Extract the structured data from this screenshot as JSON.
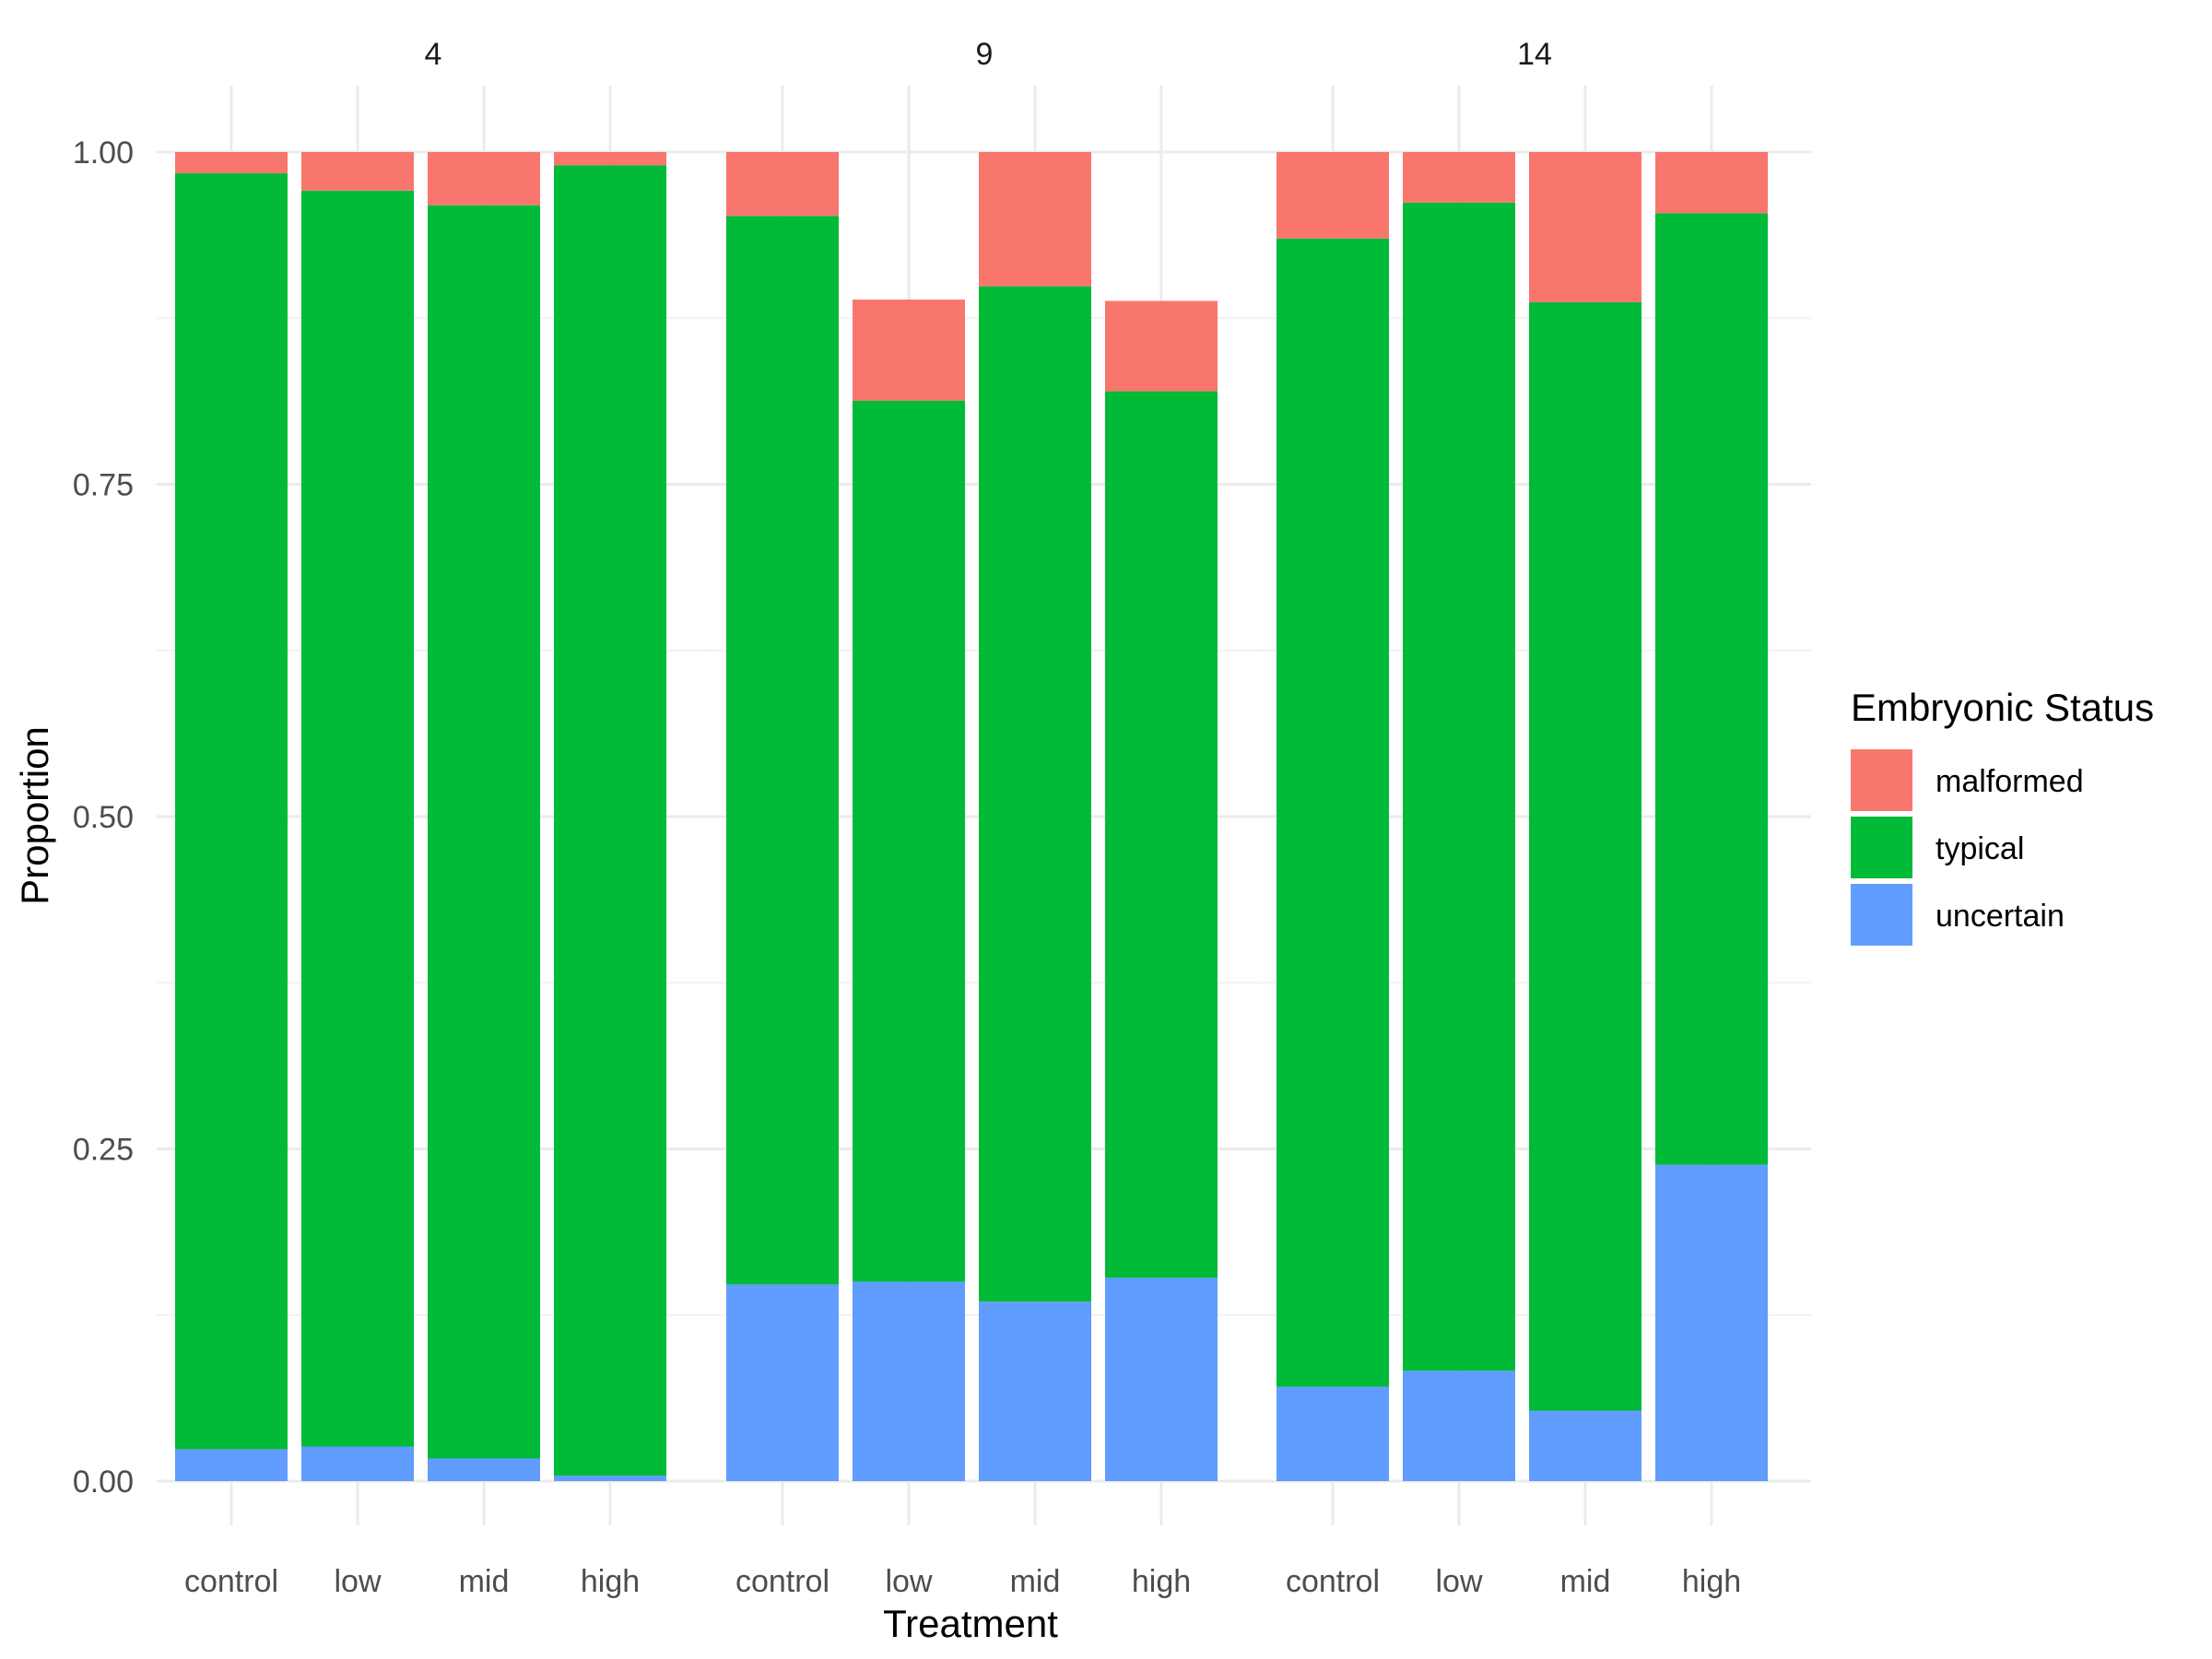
{
  "chart_data": {
    "type": "bar",
    "stacked": true,
    "facet_by": "timepoint",
    "facets": [
      {
        "label": "4",
        "categories": [
          "control",
          "low",
          "mid",
          "high"
        ],
        "series": [
          {
            "name": "uncertain",
            "values": [
              0.024,
              0.026,
              0.017,
              0.004
            ]
          },
          {
            "name": "typical",
            "values": [
              0.96,
              0.945,
              0.943,
              0.986
            ]
          },
          {
            "name": "malformed",
            "values": [
              0.016,
              0.029,
              0.04,
              0.01
            ]
          }
        ]
      },
      {
        "label": "9",
        "categories": [
          "control",
          "low",
          "mid",
          "high"
        ],
        "series": [
          {
            "name": "uncertain",
            "values": [
              0.148,
              0.15,
              0.135,
              0.153
            ]
          },
          {
            "name": "typical",
            "values": [
              0.804,
              0.663,
              0.764,
              0.667
            ]
          },
          {
            "name": "malformed",
            "values": [
              0.048,
              0.076,
              0.101,
              0.068
            ]
          }
        ]
      },
      {
        "label": "14",
        "categories": [
          "control",
          "low",
          "mid",
          "high"
        ],
        "series": [
          {
            "name": "uncertain",
            "values": [
              0.071,
              0.083,
              0.053,
              0.238
            ]
          },
          {
            "name": "typical",
            "values": [
              0.864,
              0.879,
              0.834,
              0.716
            ]
          },
          {
            "name": "malformed",
            "values": [
              0.065,
              0.038,
              0.113,
              0.046
            ]
          }
        ]
      }
    ],
    "xlabel": "Treatment",
    "ylabel": "Proportion",
    "ylim": [
      0,
      1
    ],
    "yticks": [
      "0.00",
      "0.25",
      "0.50",
      "0.75",
      "1.00"
    ],
    "ytick_values": [
      0,
      0.25,
      0.5,
      0.75,
      1.0
    ],
    "grid": true,
    "legend": {
      "title": "Embryonic Status",
      "position": "right",
      "entries": [
        "malformed",
        "typical",
        "uncertain"
      ]
    },
    "colors": {
      "malformed": "#F8766D",
      "typical": "#00BA38",
      "uncertain": "#619CFF",
      "grid_major": "#ebebeb",
      "grid_minor": "#f2f2f2"
    }
  }
}
